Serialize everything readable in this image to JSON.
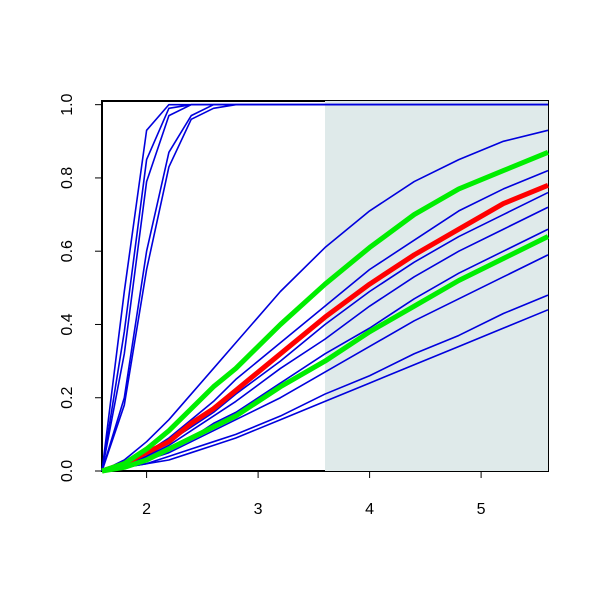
{
  "chart_data": {
    "type": "line",
    "x": [
      1.6,
      1.8,
      2.0,
      2.2,
      2.4,
      2.6,
      2.8,
      3.2,
      3.6,
      4.0,
      4.4,
      4.8,
      5.2,
      5.6
    ],
    "xlim": [
      1.6,
      5.6
    ],
    "xticks": [
      2,
      3,
      4,
      5
    ],
    "ylim": [
      0,
      1.01
    ],
    "yticks": [
      {
        "value": 0,
        "label": "0.0"
      },
      0.2,
      0.4,
      0.6,
      0.8,
      {
        "value": 1,
        "label": "1.0"
      }
    ],
    "shaded_region": {
      "xlim": [
        3.6,
        5.6
      ],
      "color": "#dfeaea"
    },
    "series": [
      {
        "color": "#0000dd",
        "values": [
          0,
          0.49,
          0.93,
          1,
          1,
          1,
          1,
          1,
          1,
          1,
          1,
          1,
          1,
          1
        ]
      },
      {
        "color": "#0000dd",
        "values": [
          0,
          0.38,
          0.85,
          0.99,
          1,
          1,
          1,
          1,
          1,
          1,
          1,
          1,
          1,
          1
        ]
      },
      {
        "color": "#0000dd",
        "values": [
          0,
          0.32,
          0.79,
          0.97,
          1,
          1,
          1,
          1,
          1,
          1,
          1,
          1,
          1,
          1
        ]
      },
      {
        "color": "#0000dd",
        "values": [
          0,
          0.2,
          0.6,
          0.87,
          0.97,
          1,
          1,
          1,
          1,
          1,
          1,
          1,
          1,
          1
        ]
      },
      {
        "color": "#0000dd",
        "values": [
          0,
          0.18,
          0.55,
          0.83,
          0.96,
          0.99,
          1,
          1,
          1,
          1,
          1,
          1,
          1,
          1
        ]
      },
      {
        "color": "#0000dd",
        "values": [
          0,
          0.03,
          0.08,
          0.14,
          0.21,
          0.28,
          0.35,
          0.49,
          0.61,
          0.71,
          0.79,
          0.85,
          0.9,
          0.93
        ]
      },
      {
        "color": "#0000dd",
        "values": [
          0,
          0.02,
          0.05,
          0.09,
          0.14,
          0.19,
          0.25,
          0.35,
          0.45,
          0.55,
          0.63,
          0.71,
          0.77,
          0.82
        ]
      },
      {
        "color": "#0000dd",
        "values": [
          0,
          0.02,
          0.04,
          0.08,
          0.12,
          0.16,
          0.21,
          0.3,
          0.4,
          0.49,
          0.57,
          0.64,
          0.7,
          0.76
        ]
      },
      {
        "color": "#0000dd",
        "values": [
          0,
          0.01,
          0.04,
          0.07,
          0.11,
          0.15,
          0.19,
          0.28,
          0.36,
          0.45,
          0.53,
          0.6,
          0.66,
          0.72
        ]
      },
      {
        "color": "#0000dd",
        "values": [
          0,
          0.01,
          0.03,
          0.06,
          0.09,
          0.13,
          0.16,
          0.24,
          0.32,
          0.39,
          0.47,
          0.54,
          0.6,
          0.66
        ]
      },
      {
        "color": "#0000dd",
        "values": [
          0,
          0.01,
          0.03,
          0.05,
          0.08,
          0.11,
          0.14,
          0.2,
          0.27,
          0.34,
          0.41,
          0.47,
          0.53,
          0.59
        ]
      },
      {
        "color": "#0000dd",
        "values": [
          0,
          0.01,
          0.02,
          0.04,
          0.06,
          0.08,
          0.1,
          0.15,
          0.21,
          0.26,
          0.32,
          0.37,
          0.43,
          0.48
        ]
      },
      {
        "color": "#0000dd",
        "values": [
          0,
          0.01,
          0.02,
          0.03,
          0.05,
          0.07,
          0.09,
          0.14,
          0.19,
          0.24,
          0.29,
          0.34,
          0.39,
          0.44
        ]
      },
      {
        "color": "#ff0000",
        "values": [
          0,
          0.02,
          0.05,
          0.08,
          0.13,
          0.17,
          0.22,
          0.32,
          0.42,
          0.51,
          0.59,
          0.66,
          0.73,
          0.78
        ]
      },
      {
        "color": "#00ee00",
        "values": [
          0,
          0.02,
          0.06,
          0.11,
          0.17,
          0.23,
          0.28,
          0.4,
          0.51,
          0.61,
          0.7,
          0.77,
          0.82,
          0.87
        ]
      },
      {
        "color": "#00ee00",
        "values": [
          0,
          0.01,
          0.03,
          0.06,
          0.09,
          0.12,
          0.15,
          0.23,
          0.3,
          0.38,
          0.45,
          0.52,
          0.58,
          0.64
        ]
      }
    ]
  }
}
